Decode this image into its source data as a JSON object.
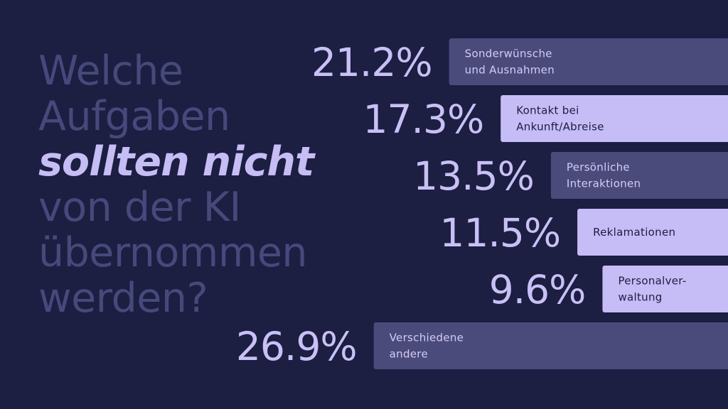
{
  "title": {
    "lines": [
      "Welche",
      "Aufgaben",
      "sollten nicht",
      "von der KI",
      "übernommen",
      "werden?"
    ],
    "emphasis_line": "sollten nicht"
  },
  "colors": {
    "background": "#1c1e42",
    "title_muted": "#46497a",
    "title_emphasis": "#c7bdf5",
    "value_text": "#c9c0f6",
    "bar_dark": "#4b4b7b",
    "bar_light": "#c6bcf6",
    "label_on_dark": "#d3ccf7",
    "label_on_light": "#1c1e42"
  },
  "chart_data": {
    "type": "bar",
    "orientation": "horizontal",
    "title": "Welche Aufgaben sollten nicht von der KI übernommen werden?",
    "value_unit": "%",
    "categories": [
      [
        "Sonderwünsche",
        "und Ausnahmen"
      ],
      [
        "Kontakt bei",
        "Ankunft/Abreise"
      ],
      [
        "Persönliche",
        "Interaktionen"
      ],
      [
        "Reklamationen"
      ],
      [
        "Personalver-",
        "waltung"
      ],
      [
        "Verschiedene",
        "andere"
      ]
    ],
    "values": [
      21.2,
      17.3,
      13.5,
      11.5,
      9.6,
      26.9
    ],
    "value_labels": [
      "21.2%",
      "17.3%",
      "13.5%",
      "11.5%",
      "9.6%",
      "26.9%"
    ],
    "bar_styles": [
      "dark",
      "light",
      "dark",
      "light",
      "light",
      "dark"
    ],
    "xlim": [
      0,
      30
    ]
  }
}
